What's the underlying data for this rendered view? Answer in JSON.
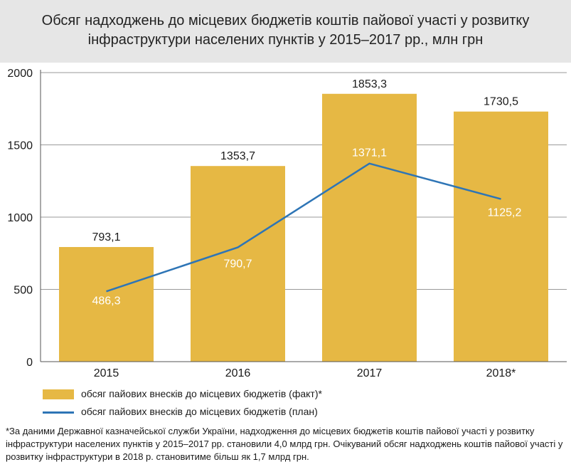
{
  "title": "Обсяг надходжень до місцевих бюджетів коштів пайової участі у розвитку інфраструктури населених пунктів у 2015–2017 рр., млн грн",
  "footnote": "*За даними Державної казначейської служби України, надходження до місцевих бюджетів коштів пайової участі у розвитку інфраструктури населених пунктів у 2015–2017 рр. становили 4,0 млрд грн. Очікуваний обсяг надходжень коштів пайової участі у розвитку інфраструктури в 2018 р. становитиме більш як 1,7 млрд грн.",
  "chart_data": {
    "type": "bar",
    "title": "Обсяг надходжень до місцевих бюджетів коштів пайової участі у розвитку інфраструктури населених пунктів у 2015–2017 рр., млн грн",
    "categories": [
      "2015",
      "2016",
      "2017",
      "2018*"
    ],
    "ylim": [
      0,
      2000
    ],
    "yticks": [
      0,
      500,
      1000,
      1500,
      2000
    ],
    "ytick_labels": [
      "0",
      "500",
      "1000",
      "1500",
      "2000"
    ],
    "grid": "horizontal",
    "legend_position": "bottom-left",
    "series": [
      {
        "name": "обсяг пайових внесків до місцевих бюджетів (факт)*",
        "kind": "bar",
        "color": "#e6b844",
        "values": [
          793.1,
          1353.7,
          1853.3,
          1730.5
        ],
        "labels": [
          "793,1",
          "1353,7",
          "1853,3",
          "1730,5"
        ]
      },
      {
        "name": "обсяг пайових внесків до місцевих бюджетів (план)",
        "kind": "line",
        "color": "#2e75b6",
        "values": [
          486.3,
          790.7,
          1371.1,
          1125.2
        ],
        "labels": [
          "486,3",
          "790,7",
          "1371,1",
          "1125,2"
        ]
      }
    ]
  }
}
